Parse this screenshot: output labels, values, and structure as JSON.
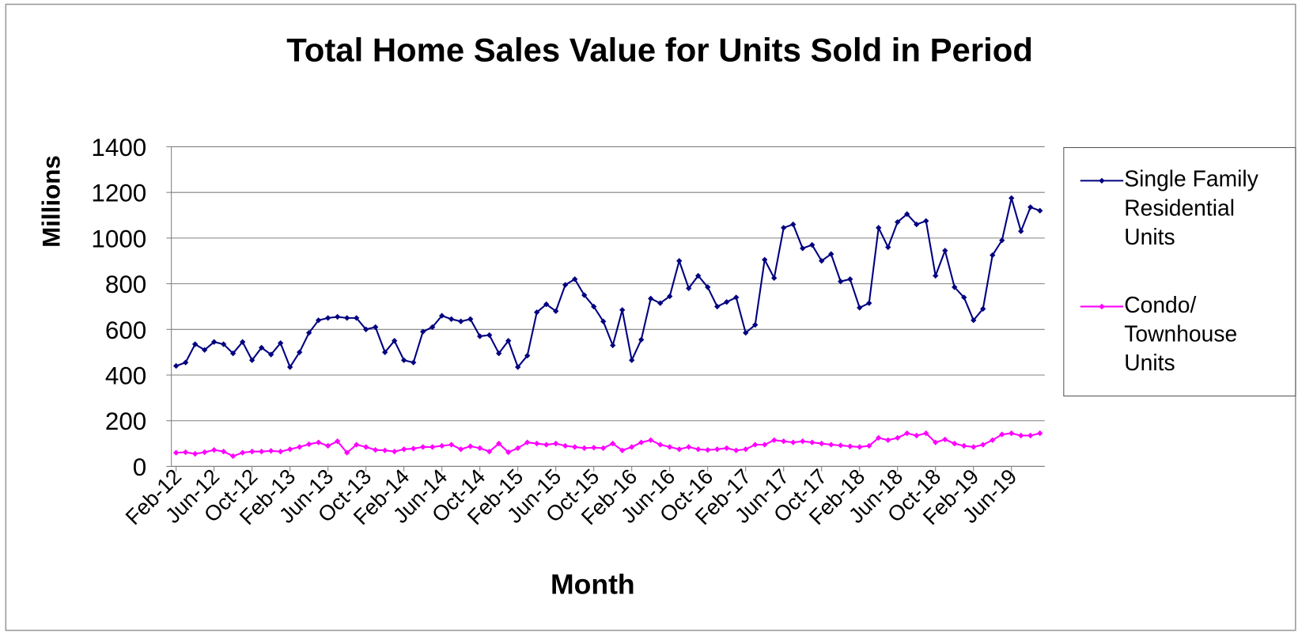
{
  "chart_data": {
    "type": "line",
    "title": "Total Home Sales Value for Units Sold in Period",
    "x_label": "Month",
    "y_label": "Millions",
    "categories": [
      "Feb-12",
      null,
      null,
      null,
      "Jun-12",
      null,
      null,
      null,
      "Oct-12",
      null,
      null,
      null,
      "Feb-13",
      null,
      null,
      null,
      "Jun-13",
      null,
      null,
      null,
      "Oct-13",
      null,
      null,
      null,
      "Feb-14",
      null,
      null,
      null,
      "Jun-14",
      null,
      null,
      null,
      "Oct-14",
      null,
      null,
      null,
      "Feb-15",
      null,
      null,
      null,
      "Jun-15",
      null,
      null,
      null,
      "Oct-15",
      null,
      null,
      null,
      "Feb-16",
      null,
      null,
      null,
      "Jun-16",
      null,
      null,
      null,
      "Oct-16",
      null,
      null,
      null,
      "Feb-17",
      null,
      null,
      null,
      "Jun-17",
      null,
      null,
      null,
      "Oct-17",
      null,
      null,
      null,
      "Feb-18",
      null,
      null,
      null,
      "Jun-18",
      null,
      null,
      null,
      "Oct-18",
      null,
      null,
      null,
      "Feb-19",
      null,
      null,
      null,
      "Jun-19",
      null,
      null,
      null
    ],
    "series": [
      {
        "name": "Single Family Residential Units",
        "color": "#000080",
        "values": [
          440,
          455,
          535,
          510,
          545,
          535,
          495,
          545,
          465,
          520,
          490,
          540,
          435,
          500,
          585,
          640,
          650,
          655,
          650,
          650,
          600,
          610,
          500,
          550,
          465,
          455,
          590,
          610,
          660,
          645,
          635,
          645,
          570,
          575,
          495,
          550,
          435,
          485,
          675,
          710,
          680,
          795,
          820,
          750,
          700,
          635,
          530,
          685,
          465,
          555,
          735,
          715,
          745,
          900,
          780,
          835,
          785,
          700,
          720,
          740,
          585,
          620,
          905,
          825,
          1045,
          1060,
          955,
          970,
          900,
          930,
          810,
          820,
          695,
          715,
          1045,
          960,
          1070,
          1105,
          1060,
          1075,
          835,
          945,
          785,
          740,
          640,
          690,
          925,
          990,
          1175,
          1030,
          1135,
          1120
        ]
      },
      {
        "name": "Condo/ Townhouse Units",
        "color": "#ff00ff",
        "values": [
          60,
          62,
          55,
          62,
          72,
          65,
          45,
          60,
          65,
          65,
          68,
          65,
          75,
          85,
          97,
          105,
          90,
          110,
          60,
          95,
          85,
          72,
          70,
          65,
          75,
          78,
          85,
          85,
          90,
          95,
          75,
          88,
          80,
          65,
          100,
          62,
          80,
          105,
          100,
          95,
          100,
          90,
          85,
          80,
          82,
          80,
          100,
          70,
          85,
          105,
          115,
          95,
          85,
          75,
          85,
          75,
          72,
          75,
          80,
          70,
          75,
          95,
          95,
          115,
          110,
          105,
          110,
          105,
          100,
          95,
          92,
          88,
          85,
          90,
          125,
          115,
          125,
          145,
          135,
          145,
          105,
          118,
          100,
          90,
          85,
          95,
          115,
          140,
          145,
          135,
          135,
          145
        ]
      }
    ],
    "ylim": [
      0,
      1400
    ],
    "yticks": [
      0,
      200,
      400,
      600,
      800,
      1000,
      1200,
      1400
    ],
    "grid": true,
    "legend": "right"
  }
}
